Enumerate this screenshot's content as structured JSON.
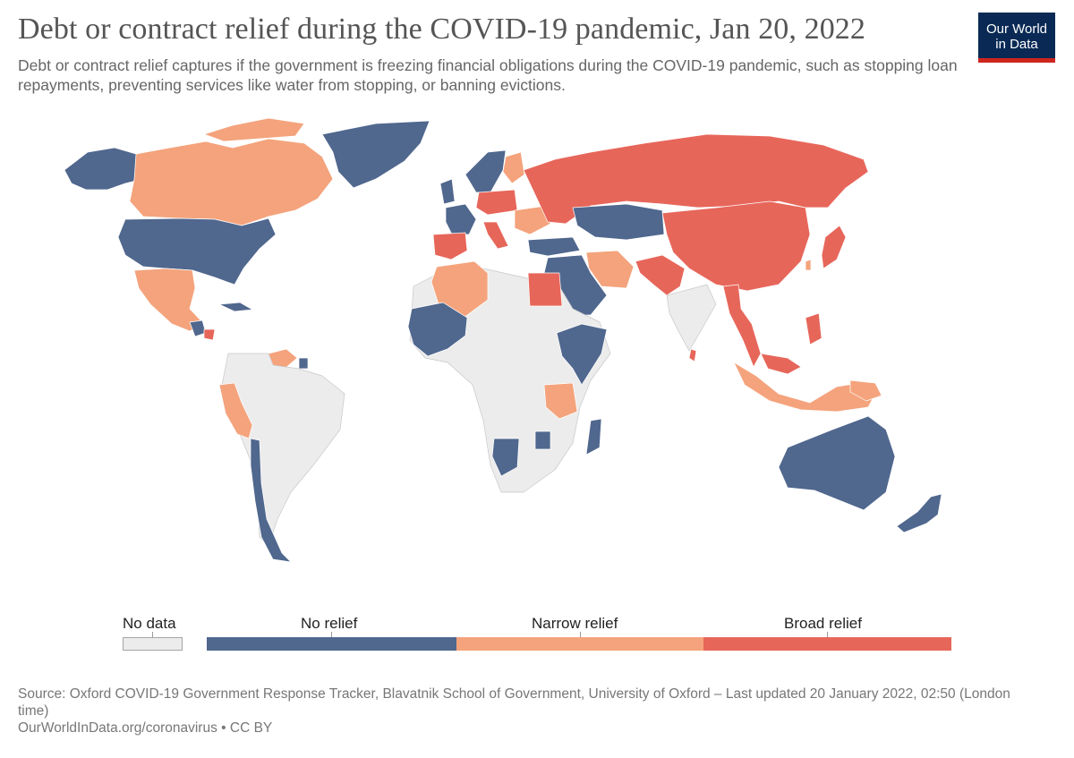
{
  "header": {
    "title": "Debt or contract relief during the COVID-19 pandemic, Jan 20, 2022",
    "subtitle": "Debt or contract relief captures if the government is freezing financial obligations during the COVID-19 pandemic, such as stopping loan repayments, preventing services like water from stopping, or banning evictions."
  },
  "logo": {
    "line1": "Our World",
    "line2": "in Data",
    "bg_color": "#0a2a55",
    "accent_color": "#ce261e"
  },
  "legend": {
    "no_data_label": "No data",
    "categories": [
      {
        "label": "No relief",
        "color": "#50678e"
      },
      {
        "label": "Narrow relief",
        "color": "#f4a37c"
      },
      {
        "label": "Broad relief",
        "color": "#e7665a"
      }
    ],
    "no_data_color": "#ececec"
  },
  "map_data": {
    "no_relief": [
      "United States",
      "Alaska",
      "Greenland",
      "France",
      "United Kingdom",
      "Norway",
      "Sweden",
      "Kazakhstan",
      "Turkey",
      "Saudi Arabia",
      "Syria",
      "Iraq",
      "Mali",
      "Burkina Faso",
      "Ghana",
      "Ivory Coast",
      "Ethiopia",
      "Somalia",
      "Namibia",
      "Zimbabwe",
      "Madagascar",
      "Australia",
      "New Zealand",
      "Chile",
      "Guatemala",
      "Cuba",
      "Suriname"
    ],
    "narrow_relief": [
      "Canada",
      "Mexico",
      "Peru",
      "Algeria",
      "Iran",
      "Tanzania",
      "Indonesia",
      "Papua New Guinea",
      "Finland",
      "Venezuela",
      "Ukraine",
      "Romania",
      "Guyana",
      "Honduras",
      "Taiwan"
    ],
    "broad_relief": [
      "Russia",
      "China",
      "Japan",
      "India",
      "Spain",
      "Portugal",
      "Italy",
      "Egypt",
      "Kyrgyzstan",
      "Poland",
      "Germany",
      "Myanmar",
      "Malaysia",
      "Philippines",
      "Sri Lanka",
      "El Salvador"
    ]
  },
  "footer": {
    "source": "Source: Oxford COVID-19 Government Response Tracker, Blavatnik School of Government, University of Oxford – Last updated 20 January 2022, 02:50 (London time)",
    "link": "OurWorldInData.org/coronavirus • CC BY"
  }
}
